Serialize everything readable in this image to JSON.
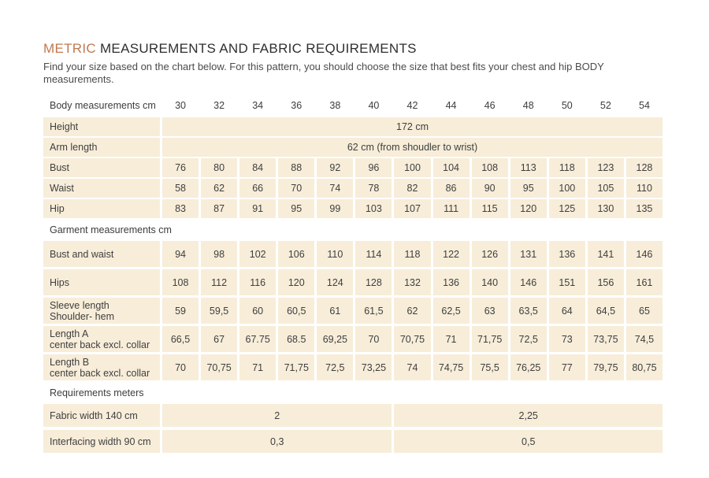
{
  "header": {
    "title_accent": "METRIC",
    "title_rest": "MEASUREMENTS AND FABRIC REQUIREMENTS",
    "subtitle": "Find your size based on the chart below. For this pattern, you should choose the size that best fits your chest and hip BODY measurements."
  },
  "colors": {
    "accent": "#c1794f",
    "cell_background": "#f7edd9",
    "text": "#3c3c3c"
  },
  "table": {
    "header_label": "Body measurements cm",
    "sizes": [
      "30",
      "32",
      "34",
      "36",
      "38",
      "40",
      "42",
      "44",
      "46",
      "48",
      "50",
      "52",
      "54"
    ],
    "body_rows": [
      {
        "label": "Height",
        "span_value": "172 cm"
      },
      {
        "label": "Arm length",
        "span_value": "62 cm (from shoudler to wrist)"
      },
      {
        "label": "Bust",
        "values": [
          "76",
          "80",
          "84",
          "88",
          "92",
          "96",
          "100",
          "104",
          "108",
          "113",
          "118",
          "123",
          "128"
        ]
      },
      {
        "label": "Waist",
        "values": [
          "58",
          "62",
          "66",
          "70",
          "74",
          "78",
          "82",
          "86",
          "90",
          "95",
          "100",
          "105",
          "110"
        ]
      },
      {
        "label": "Hip",
        "values": [
          "83",
          "87",
          "91",
          "95",
          "99",
          "103",
          "107",
          "111",
          "115",
          "120",
          "125",
          "130",
          "135"
        ]
      }
    ],
    "garment_header": "Garment measurements cm",
    "garment_rows": [
      {
        "label": "Bust and waist",
        "values": [
          "94",
          "98",
          "102",
          "106",
          "110",
          "114",
          "118",
          "122",
          "126",
          "131",
          "136",
          "141",
          "146"
        ]
      },
      {
        "label": "Hips",
        "values": [
          "108",
          "112",
          "116",
          "120",
          "124",
          "128",
          "132",
          "136",
          "140",
          "146",
          "151",
          "156",
          "161"
        ]
      },
      {
        "label": "Sleeve length",
        "sublabel": "Shoulder- hem",
        "values": [
          "59",
          "59,5",
          "60",
          "60,5",
          "61",
          "61,5",
          "62",
          "62,5",
          "63",
          "63,5",
          "64",
          "64,5",
          "65"
        ]
      },
      {
        "label": "Length A",
        "sublabel": "center back excl. collar",
        "values": [
          "66,5",
          "67",
          "67.75",
          "68.5",
          "69,25",
          "70",
          "70,75",
          "71",
          "71,75",
          "72,5",
          "73",
          "73,75",
          "74,5"
        ]
      },
      {
        "label": "Length B",
        "sublabel": "center back excl. collar",
        "values": [
          "70",
          "70,75",
          "71",
          "71,75",
          "72,5",
          "73,25",
          "74",
          "74,75",
          "75,5",
          "76,25",
          "77",
          "79,75",
          "80,75"
        ]
      }
    ],
    "requirements_header": "Requirements meters",
    "requirement_rows": [
      {
        "label": "Fabric width 140 cm",
        "left_value": "2",
        "right_value": "2,25"
      },
      {
        "label": "Interfacing width 90 cm",
        "left_value": "0,3",
        "right_value": "0,5"
      }
    ]
  }
}
